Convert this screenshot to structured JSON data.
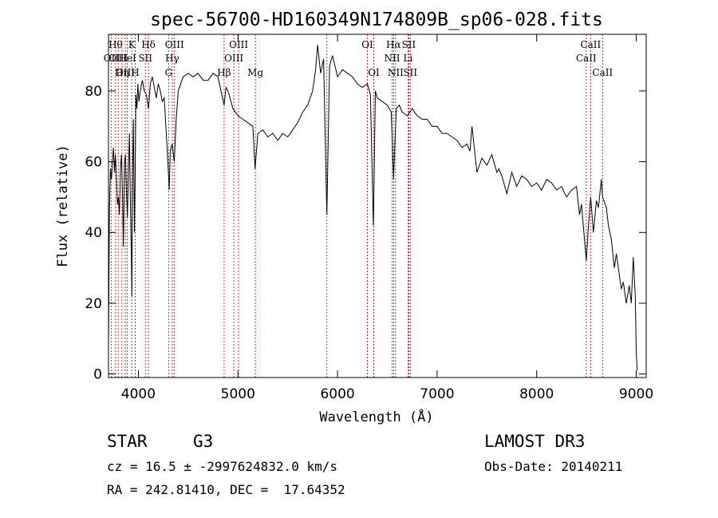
{
  "chart_data": {
    "type": "line",
    "title": "spec-56700-HD160349N174809B_sp06-028.fits",
    "xlabel": "Wavelength (Å)",
    "ylabel": "Flux (relative)",
    "xlim": [
      3700,
      9100
    ],
    "ylim": [
      -1,
      96
    ],
    "x_ticks": [
      4000,
      5000,
      6000,
      7000,
      8000,
      9000
    ],
    "y_ticks": [
      0,
      20,
      40,
      60,
      80
    ],
    "grid": false,
    "series": [
      {
        "x": [
          3700,
          3705,
          3710,
          3720,
          3730,
          3740,
          3750,
          3760,
          3770,
          3780,
          3790,
          3800,
          3810,
          3820,
          3830,
          3840,
          3850,
          3860,
          3870,
          3880,
          3890,
          3900,
          3910,
          3920,
          3930,
          3935,
          3940,
          3950,
          3960,
          3968,
          3975,
          3985,
          3995,
          4005,
          4020,
          4040,
          4060,
          4080,
          4101,
          4120,
          4140,
          4160,
          4180,
          4200,
          4220,
          4240,
          4260,
          4280,
          4300,
          4310,
          4320,
          4340,
          4360,
          4380,
          4400,
          4450,
          4500,
          4550,
          4600,
          4650,
          4700,
          4750,
          4800,
          4830,
          4861,
          4880,
          4900,
          4950,
          5000,
          5050,
          5100,
          5150,
          5172,
          5200,
          5250,
          5300,
          5350,
          5400,
          5450,
          5500,
          5550,
          5600,
          5650,
          5700,
          5750,
          5780,
          5800,
          5830,
          5860,
          5893,
          5920,
          5950,
          6000,
          6050,
          6100,
          6150,
          6200,
          6250,
          6300,
          6330,
          6360,
          6380,
          6400,
          6450,
          6500,
          6540,
          6563,
          6590,
          6620,
          6650,
          6700,
          6750,
          6800,
          6850,
          6900,
          6950,
          7000,
          7050,
          7100,
          7150,
          7200,
          7250,
          7300,
          7330,
          7350,
          7400,
          7450,
          7500,
          7550,
          7600,
          7620,
          7650,
          7700,
          7750,
          7800,
          7850,
          7900,
          7950,
          8000,
          8050,
          8100,
          8150,
          8200,
          8250,
          8300,
          8350,
          8400,
          8430,
          8450,
          8498,
          8520,
          8542,
          8570,
          8600,
          8620,
          8650,
          8662,
          8700,
          8720,
          8750,
          8780,
          8800,
          8830,
          8850,
          8870,
          8900,
          8930,
          8950,
          8970,
          8990,
          9000,
          9010
        ],
        "y": [
          8,
          28,
          47,
          58,
          55,
          60,
          64,
          57,
          62,
          55,
          48,
          50,
          45,
          58,
          62,
          52,
          36,
          60,
          62,
          52,
          44,
          57,
          68,
          48,
          33,
          22,
          53,
          72,
          40,
          57,
          79,
          75,
          82,
          77,
          80,
          83,
          80,
          79,
          75,
          82,
          84,
          81,
          78,
          82,
          80,
          77,
          78,
          68,
          58,
          52,
          63,
          65,
          60,
          72,
          80,
          84,
          85,
          84,
          85,
          83,
          83,
          85,
          84,
          80,
          76,
          81,
          80,
          75,
          73,
          72,
          71,
          70,
          58,
          68,
          69,
          67,
          68,
          66,
          68,
          67,
          69,
          71,
          74,
          76,
          80,
          86,
          93,
          85,
          89,
          45,
          87,
          90,
          84,
          86,
          85,
          84,
          82,
          81,
          82,
          79,
          42,
          80,
          78,
          77,
          76,
          74,
          55,
          75,
          76,
          74,
          73,
          75,
          73,
          72,
          72,
          70,
          70,
          68,
          68,
          67,
          66,
          64,
          65,
          63,
          70,
          57,
          61,
          59,
          62,
          57,
          58,
          56,
          51,
          57,
          53,
          56,
          55,
          53,
          54,
          52,
          55,
          54,
          52,
          53,
          50,
          52,
          53,
          45,
          48,
          32,
          42,
          50,
          40,
          49,
          47,
          55,
          50,
          47,
          42,
          38,
          30,
          34,
          28,
          24,
          26,
          20,
          25,
          20,
          33,
          22,
          6,
          1
        ]
      }
    ],
    "lines": [
      {
        "x": 3727,
        "label": "OII",
        "row": 2
      },
      {
        "x": 3771,
        "label": "Hθ",
        "row": 1
      },
      {
        "x": 3798,
        "label": "OIII",
        "row": 2
      },
      {
        "x": 3835,
        "label": "Hη",
        "row": 3
      },
      {
        "x": 3869,
        "label": "OIII",
        "row": 3
      },
      {
        "x": 3889,
        "label": "HeI",
        "row": 2
      },
      {
        "x": 3934,
        "label": "K",
        "row": 1
      },
      {
        "x": 3968,
        "label": "H",
        "row": 3
      },
      {
        "x": 4070,
        "label": "SII",
        "row": 2
      },
      {
        "x": 4101,
        "label": "Hδ",
        "row": 1
      },
      {
        "x": 4304,
        "label": "G",
        "row": 3
      },
      {
        "x": 4340,
        "label": "Hγ",
        "row": 2
      },
      {
        "x": 4363,
        "label": "OIII",
        "row": 1
      },
      {
        "x": 4861,
        "label": "Hβ",
        "row": 3
      },
      {
        "x": 4959,
        "label": "OIII",
        "row": 2
      },
      {
        "x": 5007,
        "label": "OIII",
        "row": 1
      },
      {
        "x": 5175,
        "label": "Mg",
        "row": 3
      },
      {
        "x": 5893,
        "label": "",
        "row": 0
      },
      {
        "x": 6300,
        "label": "OI",
        "row": 1
      },
      {
        "x": 6364,
        "label": "OI",
        "row": 3
      },
      {
        "x": 6548,
        "label": "NII",
        "row": 2
      },
      {
        "x": 6563,
        "label": "Hα",
        "row": 1
      },
      {
        "x": 6583,
        "label": "NII",
        "row": 3
      },
      {
        "x": 6708,
        "label": "Li",
        "row": 2
      },
      {
        "x": 6716,
        "label": "SII",
        "row": 1
      },
      {
        "x": 6731,
        "label": "SII",
        "row": 3
      },
      {
        "x": 8498,
        "label": "CaII",
        "row": 2
      },
      {
        "x": 8542,
        "label": "CaII",
        "row": 1
      },
      {
        "x": 8662,
        "label": "CaII",
        "row": 3
      }
    ]
  },
  "info": {
    "class": "STAR",
    "subclass": "G3",
    "survey": "LAMOST DR3",
    "cz": "cz = 16.5 ± -2997624832.0 km/s",
    "obs_date": "Obs-Date: 20140211",
    "radec": "RA = 242.81410, DEC =  17.64352"
  },
  "colors": {
    "spectrum": "#000000",
    "line_markers": "#b22222"
  }
}
